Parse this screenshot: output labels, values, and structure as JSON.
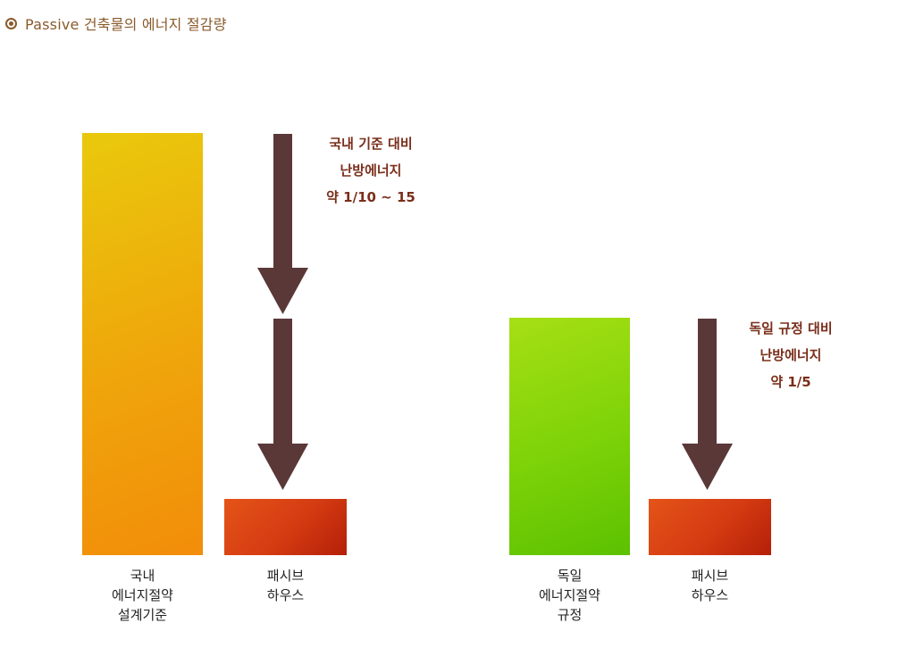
{
  "header": {
    "title": "Passive 건축물의 에너지 절감량",
    "icon": "target-icon"
  },
  "colors": {
    "arrow": "#5a3838",
    "annotation": "#7a2e1a",
    "title": "#8a5a2b"
  },
  "chart_data": {
    "type": "bar",
    "title": "Passive 건축물의 에너지 절감량",
    "groups": [
      {
        "categories": [
          "국내\n에너지절약\n설계기준",
          "패시브\n하우스"
        ],
        "annotation": "국내 기준 대비\n난방에너지\n약 1/10 ~ 15"
      },
      {
        "categories": [
          "독일\n에너지절약\n규정",
          "패시브\n하우스"
        ],
        "annotation": "독일 규정 대비\n난방에너지\n약 1/5"
      }
    ]
  }
}
